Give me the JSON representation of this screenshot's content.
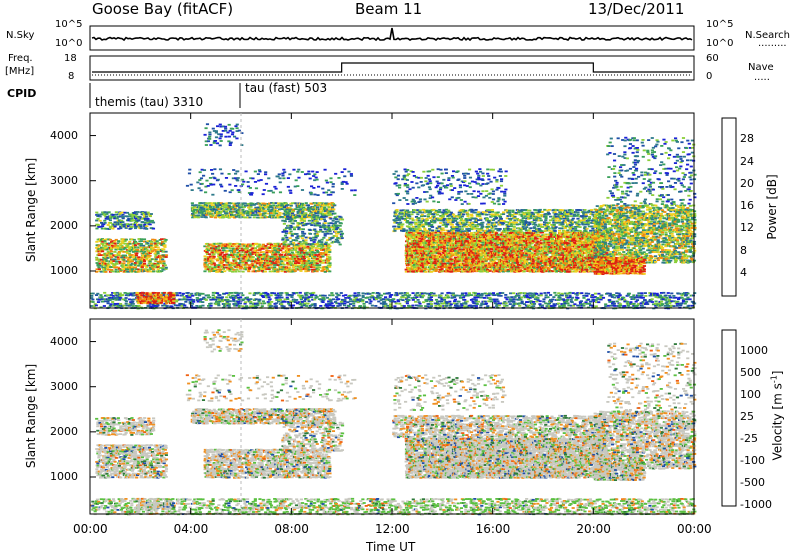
{
  "header": {
    "station": "Goose Bay (fitACF)",
    "beam": "Beam 11",
    "date": "13/Dec/2011"
  },
  "noise_panel": {
    "left_label": "N.Sky",
    "right_label": "N.Search",
    "left_ticks": [
      "10^5",
      "10^0"
    ],
    "right_ticks": [
      "10^5",
      "10^0"
    ]
  },
  "freq_panel": {
    "left_label_line1": "Freq.",
    "left_label_line2": "[MHz]",
    "right_label": "Nave",
    "left_ticks": [
      "18",
      "8"
    ],
    "right_ticks": [
      "60",
      "0"
    ]
  },
  "cpid_panel": {
    "label": "CPID",
    "modes": [
      "themis (tau) 3310",
      "tau (fast) 503"
    ]
  },
  "chart_data": [
    {
      "type": "heatmap",
      "name": "power",
      "ylabel": "Slant Range [km]",
      "y_ticks": [
        "1000",
        "2000",
        "3000",
        "4000"
      ],
      "x_ticks": [
        "00:00",
        "04:00",
        "08:00",
        "12:00",
        "16:00",
        "20:00",
        "00:00"
      ],
      "colorbar_label": "Power [dB]",
      "colorbar_ticks": [
        "4",
        "8",
        "12",
        "16",
        "20",
        "24",
        "28"
      ],
      "colors": [
        "#1a22d6",
        "#1f4fa8",
        "#2e7a8a",
        "#3aa05a",
        "#8bcf3a",
        "#f0d020",
        "#f08a10",
        "#e02010"
      ],
      "ylim": [
        180,
        4500
      ],
      "xlim": [
        0,
        24
      ]
    },
    {
      "type": "heatmap",
      "name": "velocity",
      "ylabel": "Slant Range [km]",
      "y_ticks": [
        "1000",
        "2000",
        "3000",
        "4000"
      ],
      "x_ticks": [
        "00:00",
        "04:00",
        "08:00",
        "12:00",
        "16:00",
        "20:00",
        "00:00"
      ],
      "xlabel": "Time UT",
      "colorbar_label": "Velocity [m s",
      "colorbar_label_sup": "-1",
      "colorbar_ticks": [
        "1000",
        "500",
        "100",
        "25",
        "-25",
        "-100",
        "-500",
        "-1000"
      ],
      "colors": [
        "#1a22d6",
        "#1f4fa8",
        "#2e7a3a",
        "#5ac040",
        "#c8c8c0",
        "#f09020",
        "#f06010",
        "#e02010"
      ],
      "ylim": [
        180,
        4500
      ],
      "xlim": [
        0,
        24
      ]
    }
  ]
}
